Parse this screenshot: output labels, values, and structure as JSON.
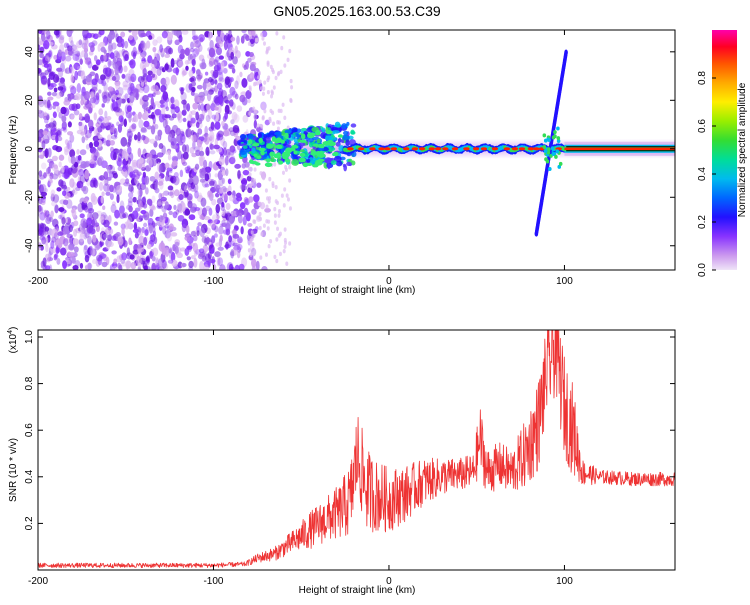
{
  "title": "GN05.2025.163.00.53.C39",
  "colors": {
    "snr_line": "#ee3333",
    "axis": "#000000",
    "scatter": "#7722ee",
    "ridge_red": "#ff2200",
    "ridge_green": "#33dd55",
    "ridge_blue": "#1122ff"
  },
  "chart_data": [
    {
      "type": "heatmap",
      "name": "spectrogram",
      "xlabel": "Height of straight line (km)",
      "ylabel": "Frequency (Hz)",
      "xlim": [
        -200,
        163
      ],
      "ylim": [
        -50,
        49
      ],
      "xticks": [
        -200,
        -100,
        0,
        100
      ],
      "yticks": [
        -40,
        -20,
        0,
        20,
        40
      ],
      "colorbar": {
        "label": "Normalized spectral amplitude",
        "range": [
          0,
          1
        ],
        "ticks": [
          "0.0",
          "0.2",
          "0.4",
          "0.6",
          "0.8"
        ],
        "tick_values": [
          0.0,
          0.2,
          0.4,
          0.6,
          0.8
        ],
        "colormap": [
          "#efe4f7",
          "#cc99ee",
          "#8833ff",
          "#2211ff",
          "#0066ff",
          "#00bbee",
          "#00dd99",
          "#33dd33",
          "#99ee00",
          "#ffee00",
          "#ffaa00",
          "#ff5500",
          "#ff0022",
          "#ff00aa"
        ]
      },
      "features": {
        "noise_region_km": [
          -200,
          -80
        ],
        "ridge_frequency_hz": 0,
        "chirp": {
          "x_km": [
            84,
            101
          ],
          "freq_hz": [
            -35,
            40
          ]
        }
      }
    },
    {
      "type": "line",
      "name": "snr",
      "xlabel": "Height of straight line (km)",
      "ylabel": "SNR (10 * v/v)",
      "multiplier": "(x10",
      "multiplier_exp": "4",
      "multiplier_close": ")",
      "xlim": [
        -200,
        163
      ],
      "ylim": [
        0,
        1.03
      ],
      "xticks": [
        -200,
        -100,
        0,
        100
      ],
      "yticks": [
        0.2,
        0.4,
        0.6,
        0.8,
        1.0
      ],
      "ytick_labels": [
        "0.2",
        "0.4",
        "0.6",
        "0.8",
        "1.0"
      ],
      "envelope": [
        [
          -200,
          0.02,
          0.01
        ],
        [
          -150,
          0.02,
          0.01
        ],
        [
          -100,
          0.02,
          0.01
        ],
        [
          -82,
          0.025,
          0.01
        ],
        [
          -75,
          0.05,
          0.02
        ],
        [
          -65,
          0.07,
          0.03
        ],
        [
          -55,
          0.12,
          0.05
        ],
        [
          -45,
          0.17,
          0.08
        ],
        [
          -35,
          0.22,
          0.1
        ],
        [
          -28,
          0.25,
          0.12
        ],
        [
          -22,
          0.3,
          0.16
        ],
        [
          -18,
          0.5,
          0.2
        ],
        [
          -13,
          0.35,
          0.18
        ],
        [
          -8,
          0.32,
          0.16
        ],
        [
          0,
          0.3,
          0.14
        ],
        [
          10,
          0.33,
          0.12
        ],
        [
          20,
          0.38,
          0.1
        ],
        [
          30,
          0.4,
          0.08
        ],
        [
          40,
          0.41,
          0.07
        ],
        [
          48,
          0.42,
          0.08
        ],
        [
          52,
          0.56,
          0.15
        ],
        [
          56,
          0.42,
          0.1
        ],
        [
          63,
          0.45,
          0.1
        ],
        [
          70,
          0.42,
          0.1
        ],
        [
          78,
          0.5,
          0.15
        ],
        [
          85,
          0.62,
          0.2
        ],
        [
          90,
          0.85,
          0.2
        ],
        [
          95,
          0.97,
          0.22
        ],
        [
          100,
          0.7,
          0.22
        ],
        [
          105,
          0.6,
          0.2
        ],
        [
          110,
          0.42,
          0.06
        ],
        [
          120,
          0.4,
          0.03
        ],
        [
          140,
          0.39,
          0.03
        ],
        [
          163,
          0.39,
          0.03
        ]
      ]
    }
  ]
}
